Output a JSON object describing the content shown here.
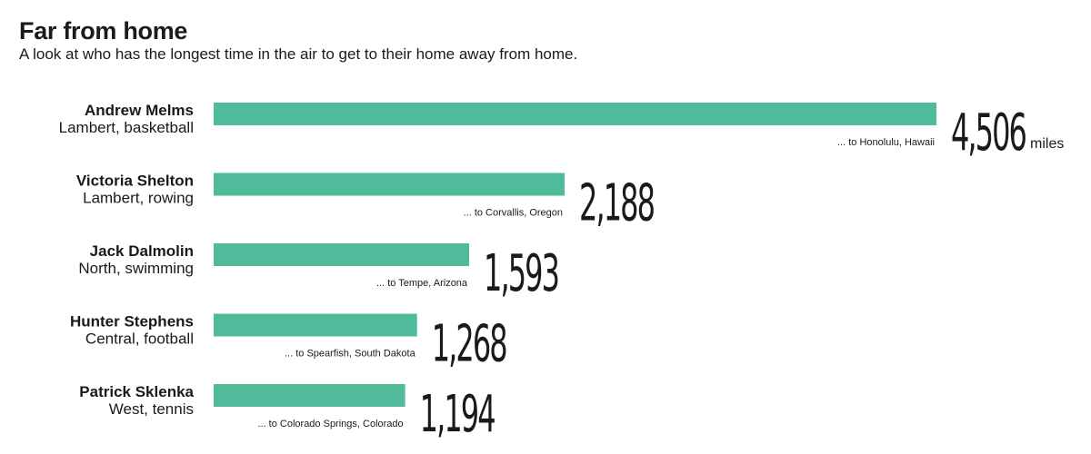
{
  "header": {
    "title": "Far from home",
    "subtitle": "A look at who has the longest time in the air to get to their home away from home."
  },
  "colors": {
    "bar": "#4fbb9a",
    "text": "#1a1a1a"
  },
  "chart_data": {
    "type": "bar",
    "orientation": "horizontal",
    "title": "Far from home",
    "subtitle": "A look at who has the longest time in the air to get to their home away from home.",
    "unit": "miles",
    "xlim": [
      0,
      4506
    ],
    "grid": false,
    "items": [
      {
        "name": "Andrew Melms",
        "school_sport": "Lambert, basketball",
        "destination": "... to Honolulu, Hawaii",
        "value": 4506,
        "value_label": "4,506"
      },
      {
        "name": "Victoria Shelton",
        "school_sport": "Lambert, rowing",
        "destination": "... to Corvallis, Oregon",
        "value": 2188,
        "value_label": "2,188"
      },
      {
        "name": "Jack Dalmolin",
        "school_sport": "North, swimming",
        "destination": "... to Tempe, Arizona",
        "value": 1593,
        "value_label": "1,593"
      },
      {
        "name": "Hunter Stephens",
        "school_sport": "Central, football",
        "destination": "... to Spearfish, South Dakota",
        "value": 1268,
        "value_label": "1,268"
      },
      {
        "name": "Patrick Sklenka",
        "school_sport": "West, tennis",
        "destination": "... to Colorado Springs, Colorado",
        "value": 1194,
        "value_label": "1,194"
      }
    ]
  }
}
